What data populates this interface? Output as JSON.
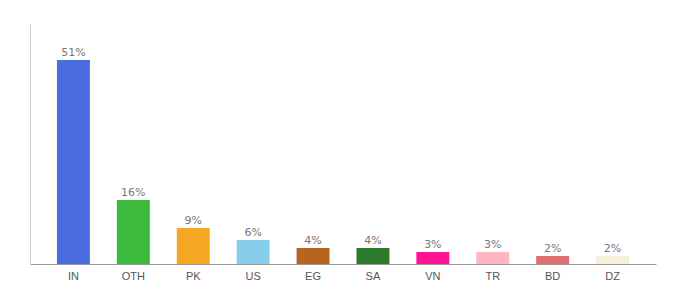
{
  "chart_data": {
    "type": "bar",
    "categories": [
      "IN",
      "OTH",
      "PK",
      "US",
      "EG",
      "SA",
      "VN",
      "TR",
      "BD",
      "DZ"
    ],
    "values": [
      51,
      16,
      9,
      6,
      4,
      4,
      3,
      3,
      2,
      2
    ],
    "value_labels": [
      "51%",
      "16%",
      "9%",
      "6%",
      "4%",
      "4%",
      "3%",
      "3%",
      "2%",
      "2%"
    ],
    "colors": [
      "#4a6ee0",
      "#3cba3c",
      "#f5a623",
      "#87ceeb",
      "#b5651d",
      "#2d7a2d",
      "#ff1493",
      "#ffb6c1",
      "#e07070",
      "#f5f0dc"
    ],
    "ylim": [
      0,
      60
    ],
    "data_labels": true,
    "tick_labels": "x"
  }
}
